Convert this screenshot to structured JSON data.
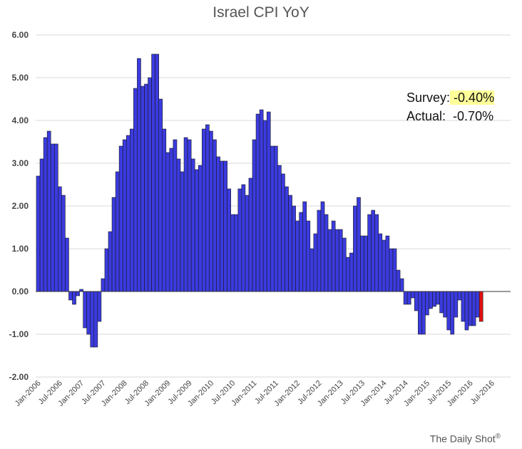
{
  "chart_data": {
    "type": "bar",
    "title": "Israel CPI YoY",
    "ylim": [
      -2.0,
      6.0
    ],
    "y_ticks": [
      "6.00",
      "5.00",
      "4.00",
      "3.00",
      "2.00",
      "1.00",
      "0.00",
      "-1.00",
      "-2.00"
    ],
    "x_tick_labels": [
      "Jan-2006",
      "Jul-2006",
      "Jan-2007",
      "Jul-2007",
      "Jan-2008",
      "Jul-2008",
      "Jan-2009",
      "Jul-2009",
      "Jan-2010",
      "Jul-2010",
      "Jan-2011",
      "Jul-2011",
      "Jan-2012",
      "Jul-2012",
      "Jan-2013",
      "Jul-2013",
      "Jan-2014",
      "Jul-2014",
      "Jan-2015",
      "Jul-2015",
      "Jan-2016",
      "Jul-2016"
    ],
    "grid": true,
    "colors": {
      "bar": "#3b3be0",
      "last_bar": "#e01010"
    },
    "values": [
      2.7,
      3.1,
      3.6,
      3.75,
      3.45,
      3.45,
      2.45,
      2.25,
      1.25,
      -0.2,
      -0.3,
      -0.1,
      0.05,
      -0.85,
      -1.0,
      -1.3,
      -1.3,
      -0.7,
      0.3,
      1.0,
      1.4,
      2.2,
      2.8,
      3.4,
      3.55,
      3.65,
      3.8,
      4.75,
      5.45,
      4.8,
      4.85,
      5.0,
      5.55,
      5.55,
      4.5,
      3.8,
      3.25,
      3.35,
      3.55,
      3.1,
      2.8,
      3.6,
      3.55,
      3.1,
      2.85,
      2.95,
      3.8,
      3.9,
      3.75,
      3.55,
      3.15,
      3.05,
      3.05,
      2.4,
      1.8,
      1.8,
      2.4,
      2.5,
      2.25,
      2.65,
      3.55,
      4.15,
      4.25,
      4.0,
      4.2,
      3.4,
      3.4,
      2.95,
      2.75,
      2.45,
      2.25,
      2.0,
      1.65,
      1.85,
      2.1,
      1.65,
      1.0,
      1.35,
      1.9,
      2.1,
      1.8,
      1.45,
      1.65,
      1.45,
      1.45,
      1.25,
      0.8,
      0.9,
      2.0,
      2.2,
      1.3,
      1.3,
      1.8,
      1.9,
      1.8,
      1.35,
      1.2,
      1.3,
      1.0,
      1.0,
      0.5,
      0.3,
      -0.3,
      -0.3,
      -0.15,
      -0.45,
      -1.0,
      -1.0,
      -0.55,
      -0.4,
      -0.35,
      -0.3,
      -0.5,
      -0.6,
      -0.9,
      -1.0,
      -0.6,
      -0.2,
      -0.7,
      -0.9,
      -0.8,
      -0.8,
      -0.6,
      -0.7
    ]
  },
  "annotation": {
    "survey_label": "Survey:",
    "survey_value": "-0.40%",
    "actual_label": "Actual:",
    "actual_value": "-0.70%"
  },
  "credit": {
    "text": "The Daily Shot",
    "mark": "®"
  }
}
